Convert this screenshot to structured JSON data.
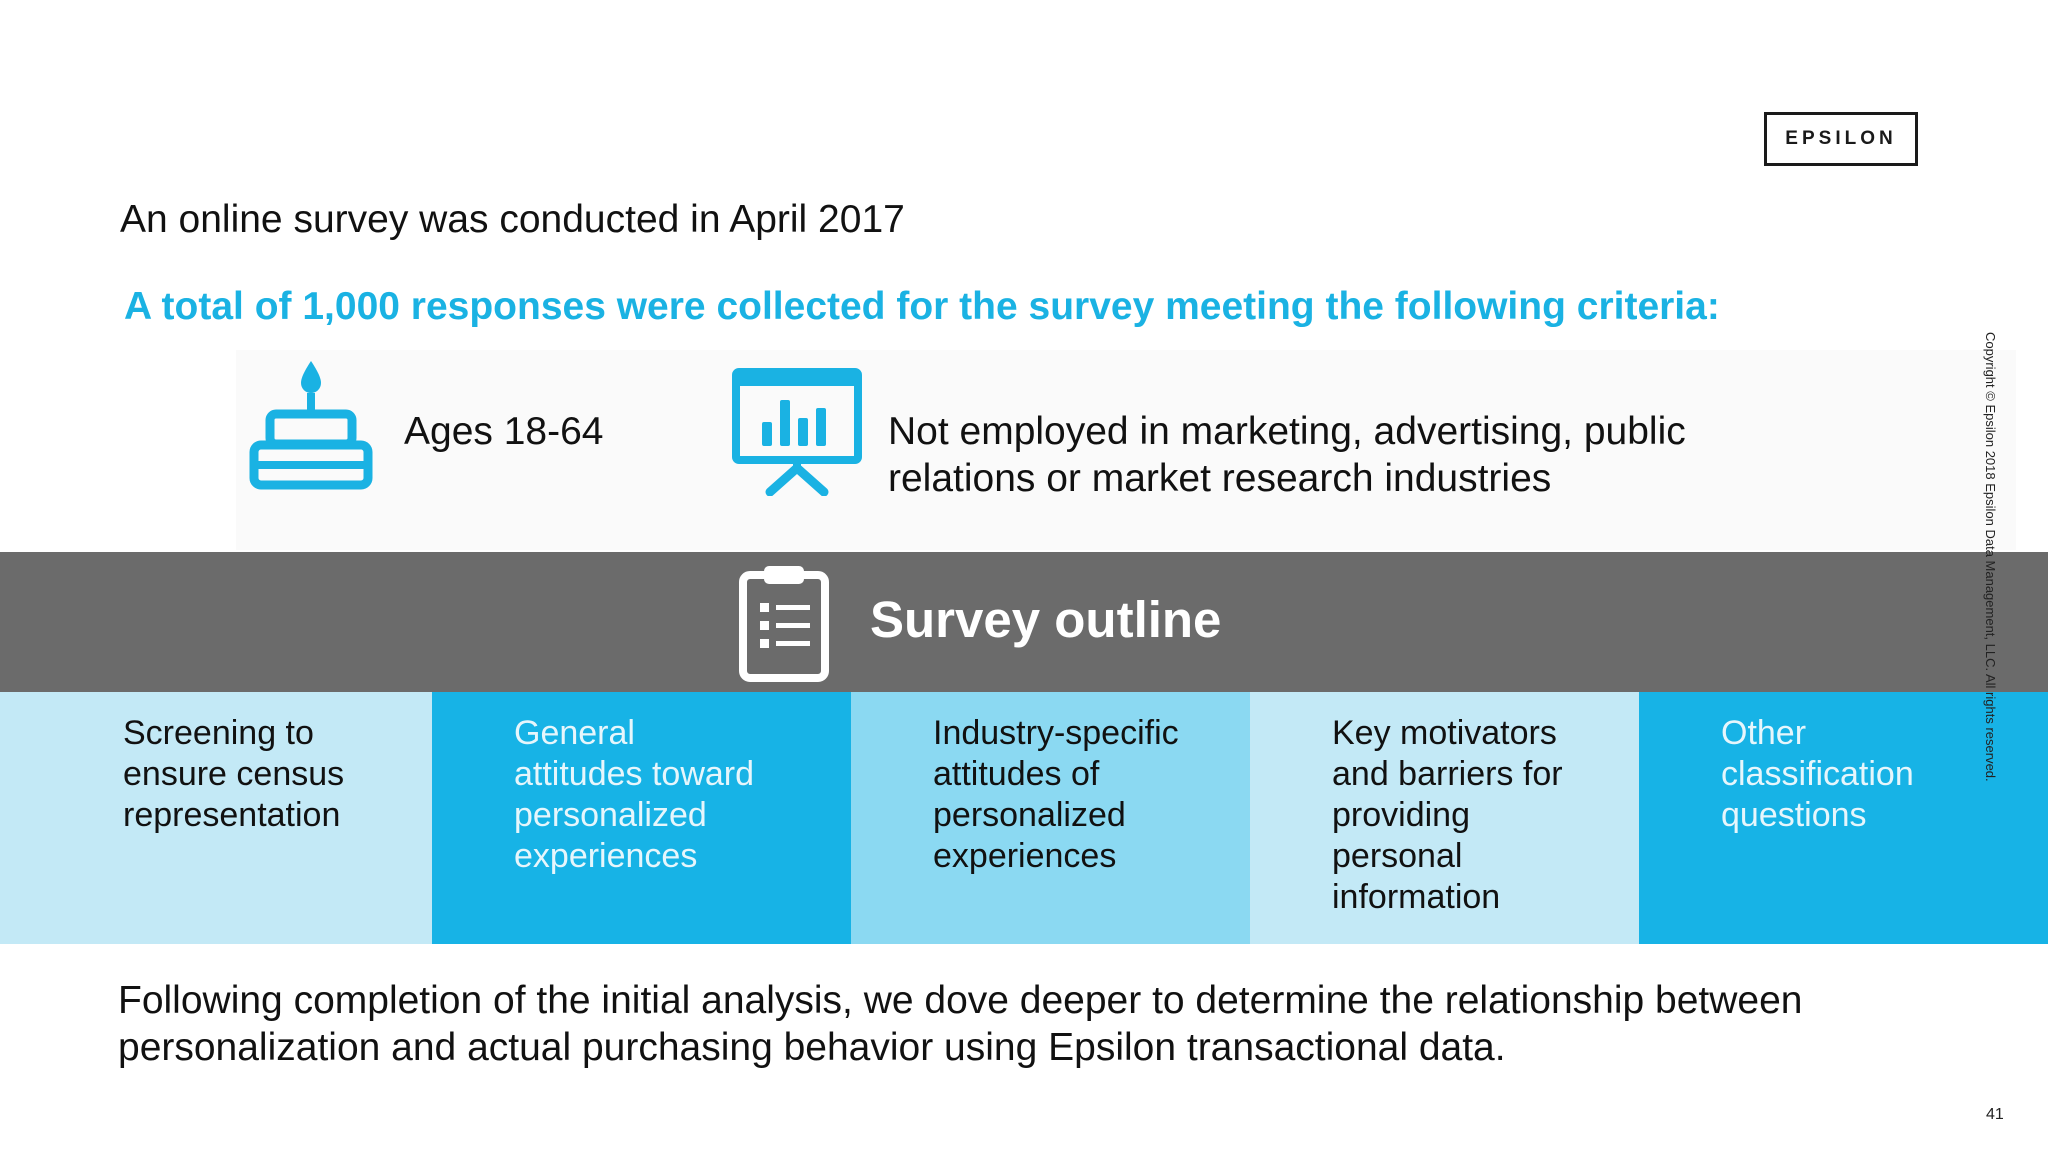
{
  "logo": {
    "text": "EPSILON"
  },
  "intro": "An online survey was conducted in April 2017",
  "criteria": {
    "heading": "A total of 1,000 responses were collected for the survey meeting the following criteria:",
    "items": [
      {
        "icon": "birthday-cake-icon",
        "text": "Ages 18-64"
      },
      {
        "icon": "presentation-chart-icon",
        "text": "Not employed in marketing, advertising, public\nrelations or market research industries"
      }
    ]
  },
  "outline": {
    "icon": "clipboard-list-icon",
    "title": "Survey outline",
    "columns": [
      {
        "text": "Screening to\nensure census\nrepresentation",
        "color": "#c3e9f6"
      },
      {
        "text": "General\nattitudes toward\npersonalized\nexperiences",
        "color": "#17b3e6"
      },
      {
        "text": "Industry-specific\nattitudes of\npersonalized\nexperiences",
        "color": "#8bd9f2"
      },
      {
        "text": "Key motivators\nand barriers for\nproviding\npersonal\ninformation",
        "color": "#c3e9f6"
      },
      {
        "text": "Other\nclassification\nquestions",
        "color": "#17b3e6"
      }
    ]
  },
  "closing": "Following completion of the initial analysis, we dove deeper to determine the relationship between personalization and actual purchasing behavior using Epsilon transactional data.",
  "copyright": "Copyright © Epsilon 2018 Epsilon Data Management, LLC. All rights reserved.",
  "page_number": "41",
  "colors": {
    "accent": "#1ab2e3",
    "band": "#6b6b6b"
  }
}
